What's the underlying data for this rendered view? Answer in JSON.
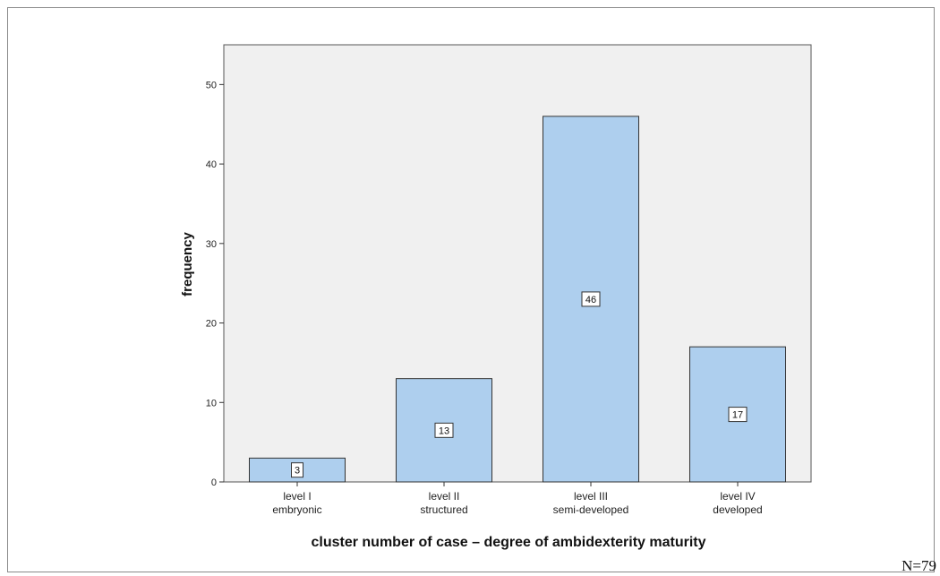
{
  "chart_data": {
    "type": "bar",
    "categories": [
      [
        "level I",
        "embryonic"
      ],
      [
        "level II",
        "structured"
      ],
      [
        "level III",
        "semi-developed"
      ],
      [
        "level IV",
        "developed"
      ]
    ],
    "values": [
      3,
      13,
      46,
      17
    ],
    "data_labels": [
      "3",
      "13",
      "46",
      "17"
    ],
    "title": "",
    "xlabel": "cluster number of case – degree of ambidexterity maturity",
    "ylabel": "frequency",
    "ylim": [
      0,
      55
    ],
    "yticks": [
      0,
      10,
      20,
      30,
      40,
      50
    ],
    "grid": false,
    "bar_color": "#aecfee",
    "plot_background": "#f0f0f0"
  },
  "note": "N=79"
}
